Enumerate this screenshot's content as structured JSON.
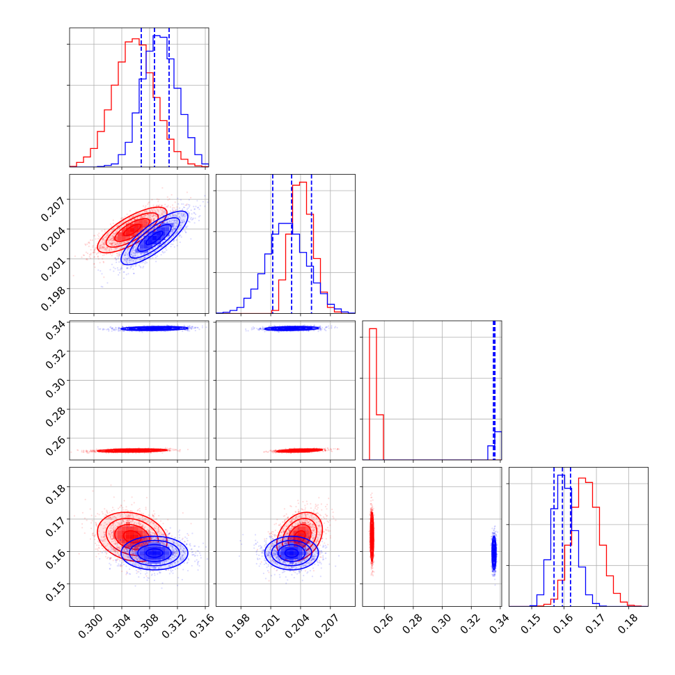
{
  "chart_data": {
    "type": "corner",
    "title": "",
    "grid": true,
    "series_colors": [
      "#ff0000",
      "#0000ff"
    ],
    "quantile_line_color": "#0000ff",
    "parameters": [
      {
        "range": [
          0.2965,
          0.3165
        ],
        "ticks": [
          0.3,
          0.304,
          0.308,
          0.312,
          0.316
        ],
        "tick_labels": [
          "0.300",
          "0.304",
          "0.308",
          "0.312",
          "0.316"
        ]
      },
      {
        "range": [
          0.1955,
          0.2095
        ],
        "ticks": [
          0.198,
          0.201,
          0.204,
          0.207
        ],
        "tick_labels": [
          "0.198",
          "0.201",
          "0.204",
          "0.207"
        ]
      },
      {
        "range": [
          0.245,
          0.341
        ],
        "ticks": [
          0.26,
          0.28,
          0.3,
          0.32,
          0.34
        ],
        "tick_labels": [
          "0.26",
          "0.28",
          "0.30",
          "0.32",
          "0.34"
        ]
      },
      {
        "range": [
          0.143,
          0.186
        ],
        "ticks": [
          0.15,
          0.16,
          0.17,
          0.18
        ],
        "tick_labels": [
          "0.15",
          "0.16",
          "0.17",
          "0.18"
        ]
      }
    ],
    "series": [
      {
        "color": "#ff0000",
        "mean": [
          0.3055,
          0.2039,
          0.2515,
          0.1645
        ],
        "std": [
          0.0025,
          0.00115,
          0.00055,
          0.0038
        ],
        "corr": [
          [
            1,
            0.75,
            0.3,
            -0.2
          ],
          [
            0.75,
            1,
            0.5,
            0.3
          ],
          [
            0.3,
            0.5,
            1,
            0
          ],
          [
            -0.2,
            0.3,
            0,
            1
          ]
        ],
        "histograms": [
          {
            "bins": [
              0.2965,
              0.2975,
              0.2985,
              0.2995,
              0.3005,
              0.3015,
              0.3025,
              0.3035,
              0.3045,
              0.3055,
              0.3065,
              0.3075,
              0.3085,
              0.3095,
              0.3105,
              0.3115,
              0.3125,
              0.3135,
              0.3145,
              0.3155,
              0.3165
            ],
            "counts": [
              0.4,
              3,
              6.5,
              12,
              23,
              37,
              53,
              68,
              81,
              83,
              79,
              61,
              45,
              30,
              18,
              10,
              5,
              2,
              0.8,
              0.2
            ]
          },
          {
            "bins": [
              0.1955,
              0.1962,
              0.1969,
              0.1976,
              0.1983,
              0.199,
              0.1997,
              0.2004,
              0.2011,
              0.2018,
              0.2025,
              0.2032,
              0.2039,
              0.2046,
              0.2053,
              0.206,
              0.2067,
              0.2074,
              0.2081,
              0.2088,
              0.2095
            ],
            "counts": [
              0,
              0,
              0,
              0,
              0,
              0,
              0,
              0,
              2,
              22,
              52,
              84,
              86,
              65,
              36,
              14,
              4,
              1,
              0,
              0
            ]
          },
          {
            "bins": [
              0.245,
              0.2498,
              0.2546,
              0.2594,
              0.2642,
              0.269,
              0.2738,
              0.2786,
              0.2834,
              0.2882,
              0.293,
              0.2978,
              0.3026,
              0.3074,
              0.3122,
              0.317,
              0.3218,
              0.3266,
              0.3314,
              0.3362,
              0.341
            ],
            "counts": [
              0,
              93,
              32,
              0,
              0,
              0,
              0,
              0,
              0,
              0,
              0,
              0,
              0,
              0,
              0,
              0,
              0,
              0,
              0,
              0
            ]
          },
          {
            "bins": [
              0.143,
              0.14515,
              0.1473,
              0.14945,
              0.1516,
              0.15375,
              0.1559,
              0.15805,
              0.1602,
              0.16235,
              0.1645,
              0.16665,
              0.1688,
              0.17095,
              0.1731,
              0.17525,
              0.1774,
              0.17955,
              0.1817,
              0.18385,
              0.186
            ],
            "counts": [
              0,
              0,
              0,
              0,
              0.3,
              1.5,
              5,
              18,
              42,
              68,
              88,
              85,
              68,
              42,
              21,
              9,
              3,
              0.8,
              0.3,
              0
            ]
          }
        ]
      },
      {
        "color": "#0000ff",
        "mean": [
          0.3087,
          0.2031,
          0.3357,
          0.1595
        ],
        "std": [
          0.0024,
          0.00135,
          0.0007,
          0.0026
        ],
        "corr": [
          [
            1,
            0.8,
            0.2,
            0
          ],
          [
            0.8,
            1,
            0.2,
            0
          ],
          [
            0.2,
            0.2,
            1,
            0
          ],
          [
            0,
            0,
            0,
            1
          ]
        ],
        "histograms": [
          {
            "bins": [
              0.2965,
              0.2975,
              0.2985,
              0.2995,
              0.3005,
              0.3015,
              0.3025,
              0.3035,
              0.3045,
              0.3055,
              0.3065,
              0.3075,
              0.3085,
              0.3095,
              0.3105,
              0.3115,
              0.3125,
              0.3135,
              0.3145,
              0.3155,
              0.3165
            ],
            "counts": [
              0,
              0,
              0,
              0,
              0.3,
              1,
              2,
              8,
              16,
              35,
              57,
              75,
              85,
              84,
              70,
              51,
              34,
              19,
              8,
              2
            ]
          },
          {
            "bins": [
              0.1955,
              0.1962,
              0.1969,
              0.1976,
              0.1983,
              0.199,
              0.1997,
              0.2004,
              0.2011,
              0.2018,
              0.2025,
              0.2032,
              0.2039,
              0.2046,
              0.2053,
              0.206,
              0.2067,
              0.2074,
              0.2081,
              0.2088,
              0.2095
            ],
            "counts": [
              0.3,
              0.8,
              2,
              4,
              10,
              16,
              26,
              39,
              52,
              59,
              59,
              52,
              40,
              31,
              20,
              13,
              6,
              3,
              1,
              0.3
            ]
          },
          {
            "bins": [
              0.245,
              0.2498,
              0.2546,
              0.2594,
              0.2642,
              0.269,
              0.2738,
              0.2786,
              0.2834,
              0.2882,
              0.293,
              0.2978,
              0.3026,
              0.3074,
              0.3122,
              0.317,
              0.3218,
              0.3266,
              0.3314,
              0.3362,
              0.341
            ],
            "counts": [
              0,
              0,
              0,
              0,
              0,
              0,
              0,
              0,
              0,
              0,
              0,
              0,
              0,
              0,
              0,
              0,
              0,
              0,
              10,
              20
            ]
          },
          {
            "bins": [
              0.143,
              0.14515,
              0.1473,
              0.14945,
              0.1516,
              0.15375,
              0.1559,
              0.15805,
              0.1602,
              0.16235,
              0.1645,
              0.16665,
              0.1688,
              0.17095,
              0.1731,
              0.17525,
              0.1774,
              0.17955,
              0.1817,
              0.18385,
              0.186
            ],
            "counts": [
              0,
              0,
              0,
              0.5,
              8,
              32,
              67,
              90,
              81,
              52,
              27,
              8,
              2,
              0.3,
              0,
              0,
              0,
              0,
              0,
              0
            ]
          }
        ]
      }
    ],
    "quantiles": [
      [
        0.3068,
        0.3087,
        0.3108
      ],
      [
        0.2012,
        0.2031,
        0.2051
      ],
      [
        0.3353,
        0.3357,
        0.3363
      ],
      [
        0.1569,
        0.1595,
        0.162
      ]
    ]
  }
}
